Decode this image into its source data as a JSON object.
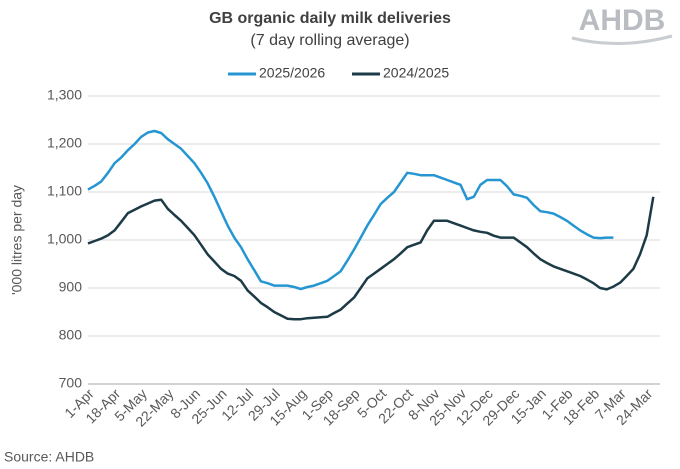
{
  "chart_data": {
    "type": "line",
    "title": "GB organic daily milk deliveries",
    "subtitle": "(7 day rolling average)",
    "ylabel": "'000 litres per day",
    "source": "Source: AHDB",
    "logo": "AHDB",
    "categories": [
      "1-Apr",
      null,
      null,
      null,
      "18-Apr",
      null,
      null,
      null,
      "5-May",
      null,
      null,
      null,
      "22-May",
      null,
      null,
      null,
      "8-Jun",
      null,
      null,
      null,
      "25-Jun",
      null,
      null,
      null,
      "12-Jul",
      null,
      null,
      null,
      "29-Jul",
      null,
      null,
      null,
      "15-Aug",
      null,
      null,
      null,
      "1-Sep",
      null,
      null,
      null,
      "18-Sep",
      null,
      null,
      null,
      "5-Oct",
      null,
      null,
      null,
      "22-Oct",
      null,
      null,
      null,
      "8-Nov",
      null,
      null,
      null,
      "25-Nov",
      null,
      null,
      null,
      "12-Dec",
      null,
      null,
      null,
      "29-Dec",
      null,
      null,
      null,
      "15-Jan",
      null,
      null,
      null,
      "1-Feb",
      null,
      null,
      null,
      "18-Feb",
      null,
      null,
      null,
      "7-Mar",
      null,
      null,
      null,
      "24-Mar",
      null
    ],
    "series": [
      {
        "name": "2025/2026",
        "color": "#2596d1",
        "values": [
          1105,
          1113,
          1122,
          1140,
          1160,
          1172,
          1187,
          1200,
          1215,
          1224,
          1227,
          1223,
          1210,
          1200,
          1190,
          1175,
          1160,
          1140,
          1118,
          1090,
          1060,
          1030,
          1005,
          985,
          960,
          937,
          914,
          910,
          905,
          905,
          905,
          902,
          898,
          902,
          905,
          910,
          915,
          925,
          935,
          957,
          980,
          1005,
          1030,
          1052,
          1075,
          1088,
          1100,
          1120,
          1140,
          1138,
          1135,
          1135,
          1135,
          1130,
          1125,
          1120,
          1115,
          1085,
          1090,
          1115,
          1125,
          1125,
          1125,
          1112,
          1095,
          1092,
          1088,
          1073,
          1060,
          1058,
          1055,
          1048,
          1040,
          1030,
          1020,
          1012,
          1005,
          1004,
          1005,
          1005,
          null,
          null,
          null,
          null,
          null,
          null
        ]
      },
      {
        "name": "2024/2025",
        "color": "#1d3a47",
        "values": [
          993,
          998,
          1003,
          1010,
          1020,
          1038,
          1056,
          1063,
          1070,
          1076,
          1082,
          1084,
          1065,
          1052,
          1040,
          1025,
          1010,
          990,
          970,
          955,
          940,
          930,
          925,
          915,
          895,
          882,
          869,
          860,
          850,
          843,
          836,
          835,
          835,
          837,
          838,
          839,
          840,
          848,
          855,
          868,
          880,
          900,
          920,
          930,
          940,
          950,
          960,
          972,
          985,
          990,
          995,
          1020,
          1040,
          1040,
          1040,
          1035,
          1030,
          1025,
          1020,
          1017,
          1015,
          1009,
          1005,
          1005,
          1005,
          995,
          985,
          972,
          960,
          952,
          945,
          940,
          935,
          930,
          925,
          918,
          910,
          900,
          897,
          903,
          911,
          925,
          940,
          970,
          1010,
          1090
        ]
      }
    ],
    "ylim": [
      700,
      1300
    ],
    "yticks": [
      {
        "value": 1300,
        "label": "1,300"
      },
      {
        "value": 1200,
        "label": "1,200"
      },
      {
        "value": 1100,
        "label": "1,100"
      },
      {
        "value": 1000,
        "label": "1,000"
      },
      900,
      800,
      700
    ],
    "grid": true,
    "legend": "top"
  }
}
